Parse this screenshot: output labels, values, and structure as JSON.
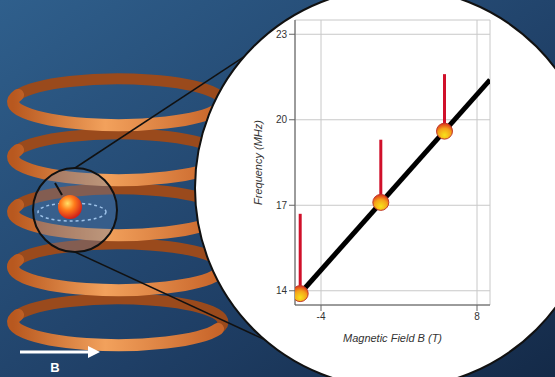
{
  "chart_data": {
    "type": "line",
    "x_label": "Magnetic Field B (T)",
    "y_label": "Frequency (MHz)",
    "x": [
      -6,
      9
    ],
    "values": [
      13.7,
      21.4
    ],
    "color": "#000000",
    "points": {
      "x": [
        -5.6,
        0.6,
        5.5
      ],
      "y": [
        13.9,
        17.1,
        19.6
      ],
      "peaks": [
        16.7,
        19.3,
        21.6
      ]
    },
    "xlim": [
      -6,
      9
    ],
    "xticks": [
      -4,
      8
    ],
    "ylim": [
      13.5,
      23.5
    ],
    "yticks": [
      14,
      17,
      20,
      23
    ],
    "grid": true
  },
  "illustration": {
    "field_label": "B"
  }
}
